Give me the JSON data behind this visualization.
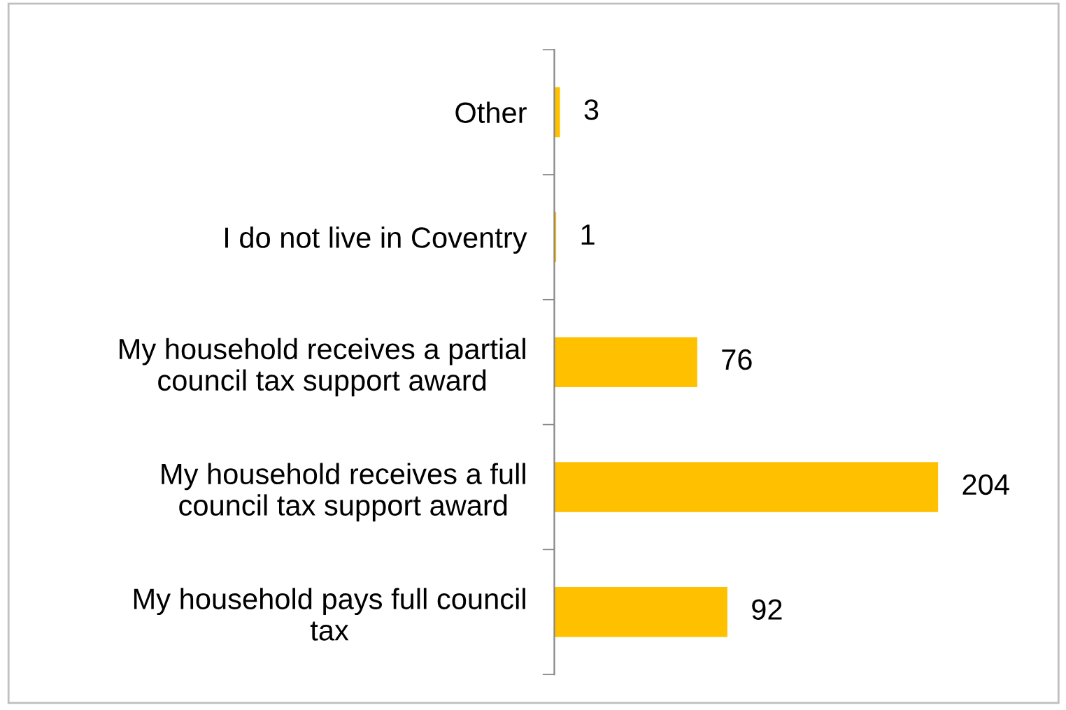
{
  "chart_data": {
    "type": "bar",
    "orientation": "horizontal",
    "categories": [
      "Other",
      "I do not live in Coventry",
      "My household receives a partial\ncouncil tax support award",
      "My household receives a full\ncouncil tax support award",
      "My household pays full council\ntax"
    ],
    "values": [
      3,
      1,
      76,
      204,
      92
    ],
    "color": "#ffc000",
    "data_labels": true,
    "grid": false,
    "tick_labels": "y"
  }
}
